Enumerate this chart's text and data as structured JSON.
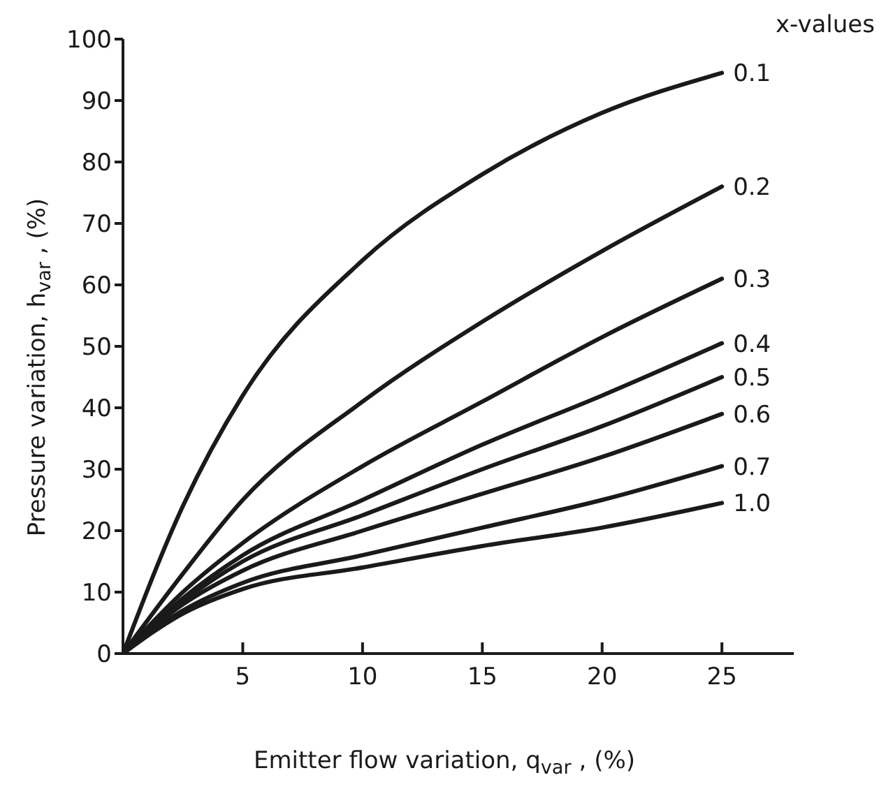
{
  "chart_data": {
    "type": "line",
    "xlabel": "Emitter flow variation,  q$_{var}$ , (%)",
    "ylabel": "Pressure variation, h$_{var}$ , (%)",
    "legend_title": "x-values",
    "x": [
      0,
      2.5,
      5,
      10,
      15,
      20,
      25
    ],
    "xlim": [
      0,
      28
    ],
    "xticks": [
      5,
      10,
      15,
      20,
      25
    ],
    "ylim": [
      0,
      100
    ],
    "yticks": [
      0,
      10,
      20,
      30,
      40,
      50,
      60,
      70,
      80,
      90,
      100
    ],
    "grid": false,
    "marker": "none",
    "line_style": "solid",
    "legend": "right",
    "series": [
      {
        "name": "0.1",
        "color": "#1a1a1a",
        "values": [
          0,
          24,
          42,
          64,
          78,
          88,
          94.5
        ]
      },
      {
        "name": "0.2",
        "color": "#1a1a1a",
        "values": [
          0,
          13,
          25,
          41,
          54,
          65.5,
          76
        ]
      },
      {
        "name": "0.3",
        "color": "#1a1a1a",
        "values": [
          0,
          10,
          18,
          30.5,
          41,
          51.5,
          61
        ]
      },
      {
        "name": "0.4",
        "color": "#1a1a1a",
        "values": [
          0,
          9,
          16,
          25,
          34,
          42,
          50.5
        ]
      },
      {
        "name": "0.5",
        "color": "#1a1a1a",
        "values": [
          0,
          8.5,
          15,
          22.5,
          30,
          37,
          45
        ]
      },
      {
        "name": "0.6",
        "color": "#1a1a1a",
        "values": [
          0,
          8,
          13.5,
          20,
          26,
          32,
          39
        ]
      },
      {
        "name": "0.7",
        "color": "#1a1a1a",
        "values": [
          0,
          7,
          11.5,
          16,
          20.5,
          25,
          30.5
        ]
      },
      {
        "name": "1.0",
        "color": "#1a1a1a",
        "values": [
          0,
          6.5,
          10.5,
          14,
          17.5,
          20.5,
          24.5
        ]
      }
    ]
  }
}
